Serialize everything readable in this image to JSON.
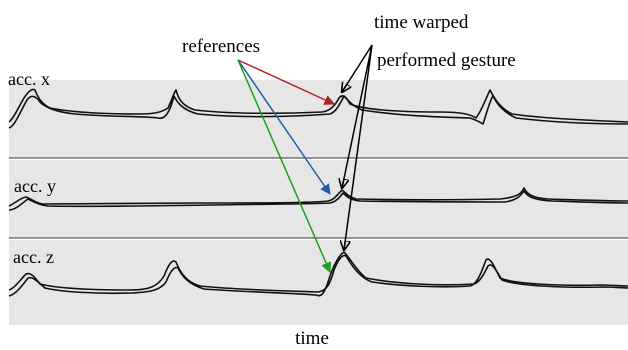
{
  "annotations": {
    "references": "references",
    "time_warped": "time warped",
    "performed_gesture": "performed gesture"
  },
  "panels": [
    {
      "label": "acc. x"
    },
    {
      "label": "acc. y"
    },
    {
      "label": "acc. z"
    }
  ],
  "xlabel": "time",
  "colors": {
    "panel_bg": "#e6e6e6",
    "trace": "#111111",
    "arrow_x": "#b22222",
    "arrow_y": "#1f5fa8",
    "arrow_z": "#1aa01a",
    "arrow_performed": "#000000"
  }
}
